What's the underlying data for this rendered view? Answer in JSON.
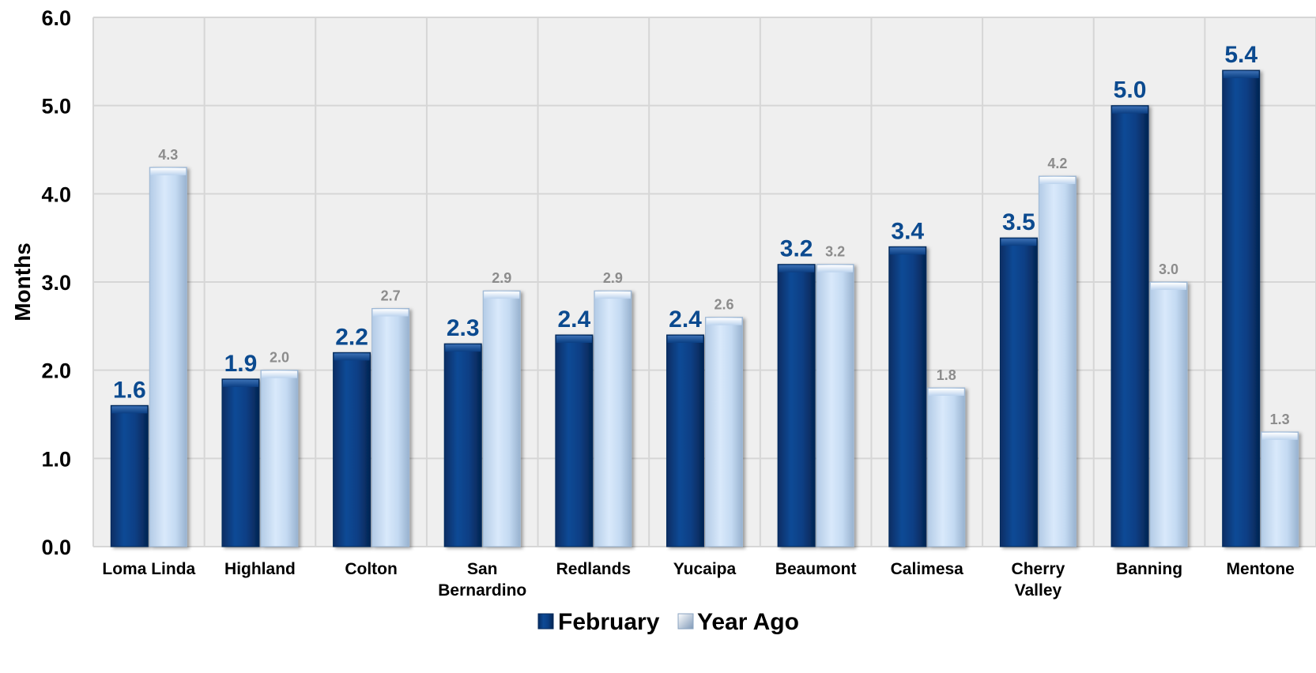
{
  "chart_data": {
    "type": "bar",
    "title": "",
    "xlabel": "",
    "ylabel": "Months",
    "ylim": [
      0,
      6
    ],
    "yticks": [
      "0.0",
      "1.0",
      "2.0",
      "3.0",
      "4.0",
      "5.0",
      "6.0"
    ],
    "grid": true,
    "legend_position": "bottom-center",
    "categories": [
      [
        "Loma Linda"
      ],
      [
        "Highland"
      ],
      [
        "Colton"
      ],
      [
        "San",
        "Bernardino"
      ],
      [
        "Redlands"
      ],
      [
        "Yucaipa"
      ],
      [
        "Beaumont"
      ],
      [
        "Calimesa"
      ],
      [
        "Cherry",
        "Valley"
      ],
      [
        "Banning"
      ],
      [
        "Mentone"
      ]
    ],
    "series": [
      {
        "name": "February",
        "values": [
          1.6,
          1.9,
          2.2,
          2.3,
          2.4,
          2.4,
          3.2,
          3.4,
          3.5,
          5.0,
          5.4
        ],
        "labels": [
          "1.6",
          "1.9",
          "2.2",
          "2.3",
          "2.4",
          "2.4",
          "3.2",
          "3.4",
          "3.5",
          "5.0",
          "5.4"
        ],
        "color": "#0a3e82",
        "label_color": "#0b4a8f"
      },
      {
        "name": "Year Ago",
        "values": [
          4.3,
          2.0,
          2.7,
          2.9,
          2.9,
          2.6,
          3.2,
          1.8,
          4.2,
          3.0,
          1.3
        ],
        "labels": [
          "4.3",
          "2.0",
          "2.7",
          "2.9",
          "2.9",
          "2.6",
          "3.2",
          "1.8",
          "4.2",
          "3.0",
          "1.3"
        ],
        "color": "#c9def5",
        "label_color": "#8c8c8c"
      }
    ],
    "colors": {
      "plot_background": "#efefef",
      "grid": "#d6d6d6"
    }
  }
}
